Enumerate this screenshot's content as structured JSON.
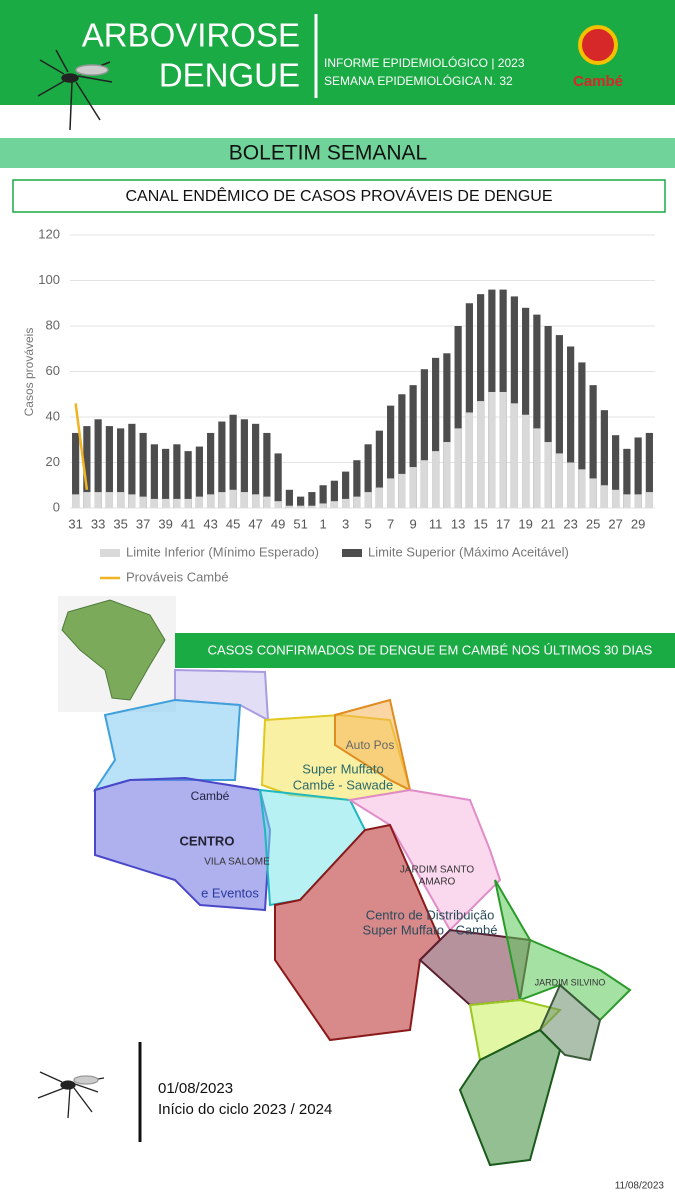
{
  "header": {
    "title_line1": "ARBOVIROSE",
    "title_line2": "DENGUE",
    "info_line1": "INFORME EPIDEMIOLÓGICO | 2023",
    "info_line2": "SEMANA EPIDEMIOLÓGICA  N. 32",
    "logo": "Cambé"
  },
  "banner": "BOLETIM SEMANAL",
  "chart_data": {
    "type": "bar",
    "title": "CANAL ENDÊMICO DE CASOS PROVÁVEIS DE DENGUE",
    "y_label": "Casos prováveis",
    "categories": [
      "31",
      null,
      "33",
      null,
      "35",
      null,
      "37",
      null,
      "39",
      null,
      "41",
      null,
      "43",
      null,
      "45",
      null,
      "47",
      null,
      "49",
      null,
      "51",
      null,
      "1",
      null,
      "3",
      null,
      "5",
      null,
      "7",
      null,
      "9",
      null,
      "11",
      null,
      "13",
      null,
      "15",
      null,
      "17",
      null,
      "19",
      null,
      "21",
      null,
      "23",
      null,
      "25",
      null,
      "27",
      null,
      "29",
      null
    ],
    "series": [
      {
        "name": "Limite Inferior (Mínimo Esperado)",
        "color": "#d9d9d9",
        "values": [
          6,
          7,
          7,
          7,
          7,
          6,
          5,
          4,
          4,
          4,
          4,
          5,
          6,
          7,
          8,
          7,
          6,
          5,
          3,
          1,
          1,
          1,
          2,
          3,
          4,
          5,
          7,
          9,
          13,
          15,
          18,
          21,
          25,
          29,
          35,
          42,
          47,
          51,
          51,
          46,
          41,
          35,
          29,
          24,
          20,
          17,
          13,
          10,
          8,
          6,
          6,
          7
        ]
      },
      {
        "name": "Limite Superior (Máximo Aceitável)",
        "color": "#4d4d4d",
        "values": [
          33,
          36,
          39,
          36,
          35,
          37,
          33,
          28,
          26,
          28,
          25,
          27,
          33,
          38,
          41,
          39,
          37,
          33,
          24,
          8,
          5,
          7,
          10,
          12,
          16,
          21,
          28,
          34,
          45,
          50,
          54,
          61,
          66,
          68,
          80,
          90,
          94,
          96,
          96,
          93,
          88,
          85,
          80,
          76,
          71,
          64,
          54,
          43,
          32,
          26,
          31,
          33
        ]
      },
      {
        "name": "Prováveis Cambé",
        "color": "#f0b323",
        "type": "line",
        "values": [
          46,
          8,
          null,
          null,
          null,
          null,
          null,
          null,
          null,
          null,
          null,
          null,
          null,
          null,
          null,
          null,
          null,
          null,
          null,
          null,
          null,
          null,
          null,
          null,
          null,
          null,
          null,
          null,
          null,
          null,
          null,
          null,
          null,
          null,
          null,
          null,
          null,
          null,
          null,
          null,
          null,
          null,
          null,
          null,
          null,
          null,
          null,
          null,
          null,
          null,
          null,
          null
        ]
      }
    ],
    "ylim": [
      0,
      120
    ],
    "yticks": [
      0,
      20,
      40,
      60,
      80,
      100,
      120
    ],
    "grid": true
  },
  "map": {
    "title": "CASOS CONFIRMADOS DE DENGUE EM CAMBÉ NOS ÚLTIMOS 30 DIAS",
    "labels": [
      "Cambé",
      "CENTRO",
      "VILA SALOME",
      "Super Muffato",
      "Cambé - Sawade",
      "JARDIM SANTO",
      "AMARO",
      "Centro de Distribuição",
      "Super Muffato - Cambé",
      "JARDIM SILVINO",
      "Auto Pos",
      "e Eventos"
    ]
  },
  "footer": {
    "date": "01/08/2023",
    "cycle": "Início do ciclo 2023 / 2024",
    "issue_date": "11/08/2023"
  }
}
